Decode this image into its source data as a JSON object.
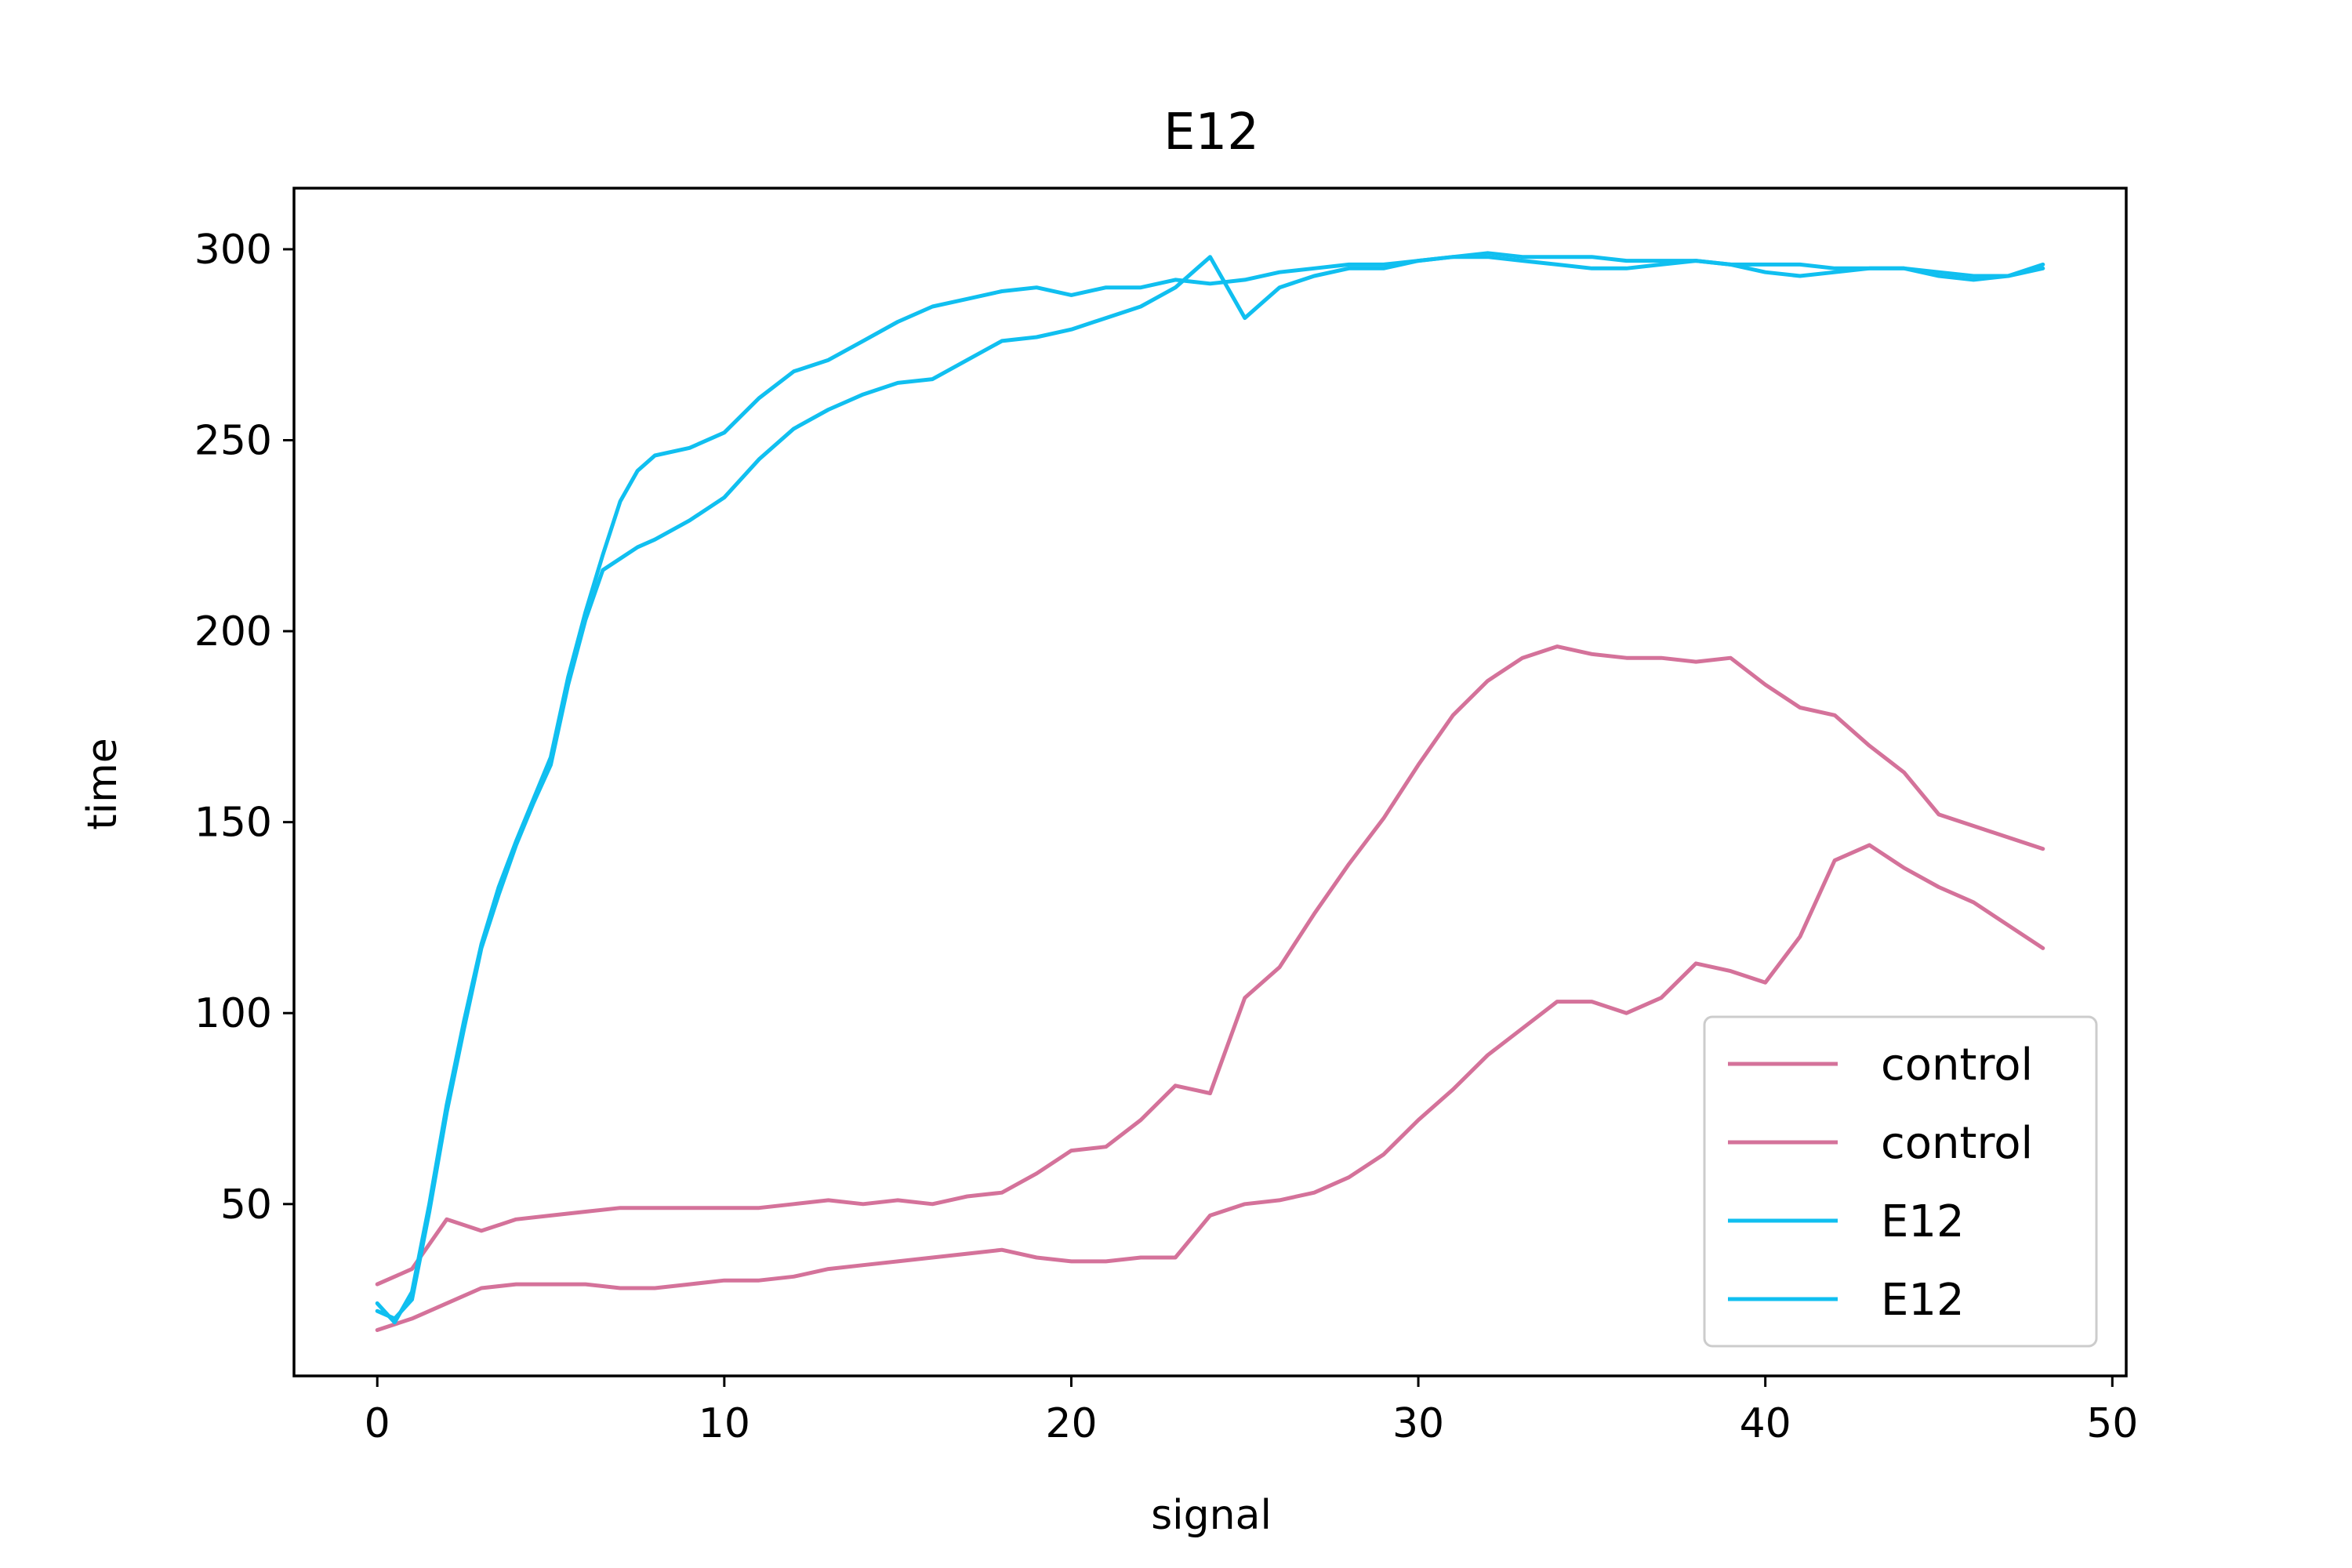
{
  "chart_data": {
    "type": "line",
    "title": "E12",
    "xlabel": "signal",
    "ylabel": "time",
    "xlim": [
      -2.4,
      50.4
    ],
    "ylim": [
      5,
      316
    ],
    "xticks": [
      0,
      10,
      20,
      30,
      40,
      50
    ],
    "yticks": [
      50,
      100,
      150,
      200,
      250,
      300
    ],
    "grid": false,
    "legend_position": "lower right",
    "colors": {
      "control": "#d4729a",
      "E12": "#10bff0"
    },
    "series": [
      {
        "name": "control",
        "color": "#d4729a",
        "x": [
          0,
          1,
          2,
          3,
          4,
          5,
          6,
          7,
          8,
          9,
          10,
          11,
          12,
          13,
          14,
          15,
          16,
          17,
          18,
          19,
          20,
          21,
          22,
          23,
          24,
          25,
          26,
          27,
          28,
          29,
          30,
          31,
          32,
          33,
          34,
          35,
          36,
          37,
          38,
          39,
          40,
          41,
          42,
          43,
          44,
          45,
          46,
          47,
          48
        ],
        "y": [
          29,
          33,
          46,
          43,
          46,
          47,
          48,
          49,
          49,
          49,
          49,
          49,
          50,
          51,
          50,
          51,
          50,
          52,
          53,
          58,
          64,
          65,
          72,
          81,
          79,
          104,
          112,
          126,
          139,
          151,
          165,
          178,
          187,
          193,
          196,
          194,
          193,
          193,
          192,
          193,
          186,
          180,
          178,
          170,
          163,
          152,
          149,
          146,
          143
        ]
      },
      {
        "name": "control",
        "color": "#d4729a",
        "x": [
          0,
          1,
          2,
          3,
          4,
          5,
          6,
          7,
          8,
          9,
          10,
          11,
          12,
          13,
          14,
          15,
          16,
          17,
          18,
          19,
          20,
          21,
          22,
          23,
          24,
          25,
          26,
          27,
          28,
          29,
          30,
          31,
          32,
          33,
          34,
          35,
          36,
          37,
          38,
          39,
          40,
          41,
          42,
          43,
          44,
          45,
          46,
          47,
          48
        ],
        "y": [
          17,
          20,
          24,
          28,
          29,
          29,
          29,
          28,
          28,
          29,
          30,
          30,
          31,
          33,
          34,
          35,
          36,
          37,
          38,
          36,
          35,
          35,
          36,
          36,
          47,
          50,
          51,
          53,
          57,
          63,
          72,
          80,
          89,
          96,
          103,
          103,
          100,
          104,
          113,
          111,
          108,
          120,
          140,
          144,
          138,
          133,
          129,
          123,
          117
        ]
      },
      {
        "name": "E12",
        "color": "#10bff0",
        "x": [
          0,
          0.5,
          1,
          1.5,
          2,
          2.5,
          3,
          3.5,
          4,
          4.5,
          5,
          5.5,
          6,
          6.5,
          7,
          7.5,
          8,
          9,
          10,
          11,
          12,
          13,
          14,
          15,
          16,
          17,
          18,
          19,
          20,
          21,
          22,
          23,
          24,
          25,
          26,
          27,
          28,
          29,
          30,
          31,
          32,
          33,
          34,
          35,
          36,
          37,
          38,
          39,
          40,
          41,
          42,
          43,
          44,
          45,
          46,
          47,
          48
        ],
        "y": [
          24,
          19,
          27,
          50,
          76,
          98,
          118,
          133,
          145,
          156,
          167,
          188,
          205,
          220,
          234,
          242,
          246,
          248,
          252,
          261,
          268,
          271,
          276,
          281,
          285,
          287,
          289,
          290,
          288,
          290,
          290,
          292,
          291,
          292,
          294,
          295,
          296,
          296,
          297,
          298,
          299,
          298,
          298,
          298,
          297,
          297,
          297,
          296,
          296,
          296,
          295,
          295,
          295,
          294,
          293,
          293,
          295
        ]
      },
      {
        "name": "E12",
        "color": "#10bff0",
        "x": [
          0,
          0.5,
          1,
          1.5,
          2,
          2.5,
          3,
          3.5,
          4,
          4.5,
          5,
          5.5,
          6,
          6.5,
          7,
          7.5,
          8,
          9,
          10,
          11,
          12,
          13,
          14,
          15,
          16,
          17,
          18,
          19,
          20,
          21,
          22,
          23,
          24,
          25,
          26,
          27,
          28,
          29,
          30,
          31,
          32,
          33,
          34,
          35,
          36,
          37,
          38,
          39,
          40,
          41,
          42,
          43,
          44,
          45,
          46,
          47,
          48
        ],
        "y": [
          22,
          20,
          25,
          48,
          74,
          96,
          117,
          131,
          144,
          155,
          165,
          186,
          203,
          216,
          219,
          222,
          224,
          229,
          235,
          245,
          253,
          258,
          262,
          265,
          266,
          271,
          276,
          277,
          279,
          282,
          285,
          290,
          298,
          282,
          290,
          293,
          295,
          295,
          297,
          298,
          298,
          297,
          296,
          295,
          295,
          296,
          297,
          296,
          294,
          293,
          294,
          295,
          295,
          293,
          292,
          293,
          296
        ]
      }
    ]
  }
}
